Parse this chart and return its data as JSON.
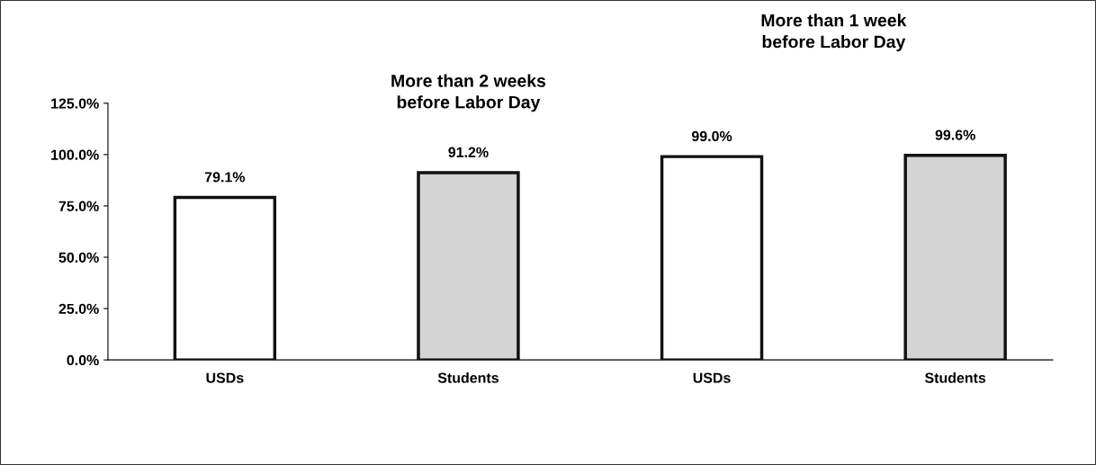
{
  "chart_data": {
    "type": "bar",
    "categories": [
      "USDs",
      "Students",
      "USDs",
      "Students"
    ],
    "values": [
      79.1,
      91.2,
      99.0,
      99.6
    ],
    "colors": [
      "#ffffff",
      "#d4d4d4",
      "#ffffff",
      "#d4d4d4"
    ],
    "value_labels": [
      "79.1%",
      "91.2%",
      "99.0%",
      "99.6%"
    ],
    "ylim": [
      0,
      125
    ],
    "yticks": [
      {
        "value": 0,
        "label": "0.0%"
      },
      {
        "value": 25,
        "label": "25.0%"
      },
      {
        "value": 50,
        "label": "50.0%"
      },
      {
        "value": 75,
        "label": "75.0%"
      },
      {
        "value": 100,
        "label": "100.0%"
      },
      {
        "value": 125,
        "label": "125.0%"
      }
    ],
    "annotations": [
      "More than 2 weeks\nbefore Labor Day",
      "More than 1 week\nbefore Labor Day"
    ],
    "grid": false,
    "legend": false
  }
}
